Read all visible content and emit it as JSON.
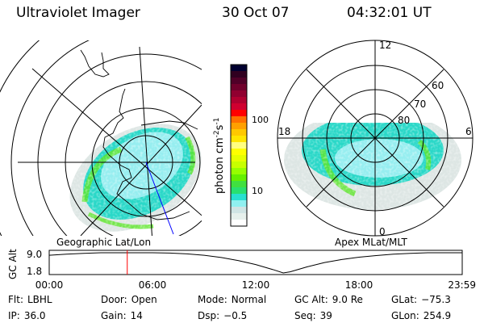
{
  "header": {
    "instrument": "Ultraviolet Imager",
    "date": "30 Oct 07",
    "time": "04:32:01 UT"
  },
  "left_map": {
    "label": "Geographic Lat/Lon"
  },
  "right_map": {
    "label": "Apex MLat/MLT",
    "mlt_labels": [
      "12",
      "18",
      "6",
      "0"
    ],
    "lat_labels": [
      "60",
      "70",
      "80"
    ]
  },
  "colorbar": {
    "label": "photon cm",
    "label_sup1": "-2",
    "label_s": "s",
    "label_sup2": "-1",
    "ticks": [
      "100",
      "10"
    ],
    "scale": "log",
    "colors": [
      "#000030",
      "#300020",
      "#500028",
      "#70002c",
      "#900030",
      "#b00030",
      "#d00030",
      "#ff0000",
      "#ff7000",
      "#ffa000",
      "#ffc800",
      "#ffe600",
      "#ffff80",
      "#ffff00",
      "#e6ff00",
      "#c8ff00",
      "#96ff00",
      "#64f000",
      "#40e040",
      "#28e070",
      "#28e0d0",
      "#90f0f0",
      "#d0e4e4",
      "#e6f0ec",
      "#ffffff"
    ]
  },
  "aurora_colors": {
    "pale": "#dde6e4",
    "light": "#96eef0",
    "teal": "#2ad8c8",
    "green": "#5ce628",
    "track": "#0000ff"
  },
  "chart_data": {
    "type": "line",
    "ylabel": "GC Alt",
    "yticks": [
      "9.0",
      "1.8"
    ],
    "ylim": [
      1.8,
      9.0
    ],
    "xticks": [
      "00:00",
      "06:00",
      "12:00",
      "18:00",
      "23:59"
    ],
    "xlim_hours": [
      0,
      24
    ],
    "x_hours": [
      0,
      1,
      2,
      3,
      4,
      5,
      6,
      7,
      8,
      9,
      10,
      11,
      12,
      13,
      13.6,
      14,
      15,
      16,
      17,
      18,
      19,
      20,
      21,
      22,
      23,
      24
    ],
    "values": [
      8.1,
      8.5,
      8.8,
      9.0,
      9.0,
      9.0,
      9.0,
      8.9,
      8.6,
      8.1,
      7.3,
      6.2,
      4.8,
      3.0,
      1.8,
      2.2,
      4.0,
      5.5,
      6.6,
      7.4,
      8.0,
      8.5,
      8.8,
      9.0,
      9.0,
      9.0
    ],
    "marker_time_hours": 4.535,
    "marker_color": "#ff0000"
  },
  "status": [
    {
      "label": "Flt:",
      "value": "LBHL"
    },
    {
      "label": "Door:",
      "value": "Open"
    },
    {
      "label": "Mode:",
      "value": "Normal"
    },
    {
      "label": "GC Alt:",
      "value": "9.0 Re"
    },
    {
      "label": "GLat:",
      "value": "−75.3"
    },
    {
      "label": "IP:",
      "value": "36.0"
    },
    {
      "label": "Gain:",
      "value": "14"
    },
    {
      "label": "Dsp:",
      "value": "−0.5"
    },
    {
      "label": "Seq:",
      "value": "39"
    },
    {
      "label": "GLon:",
      "value": "254.9"
    }
  ]
}
